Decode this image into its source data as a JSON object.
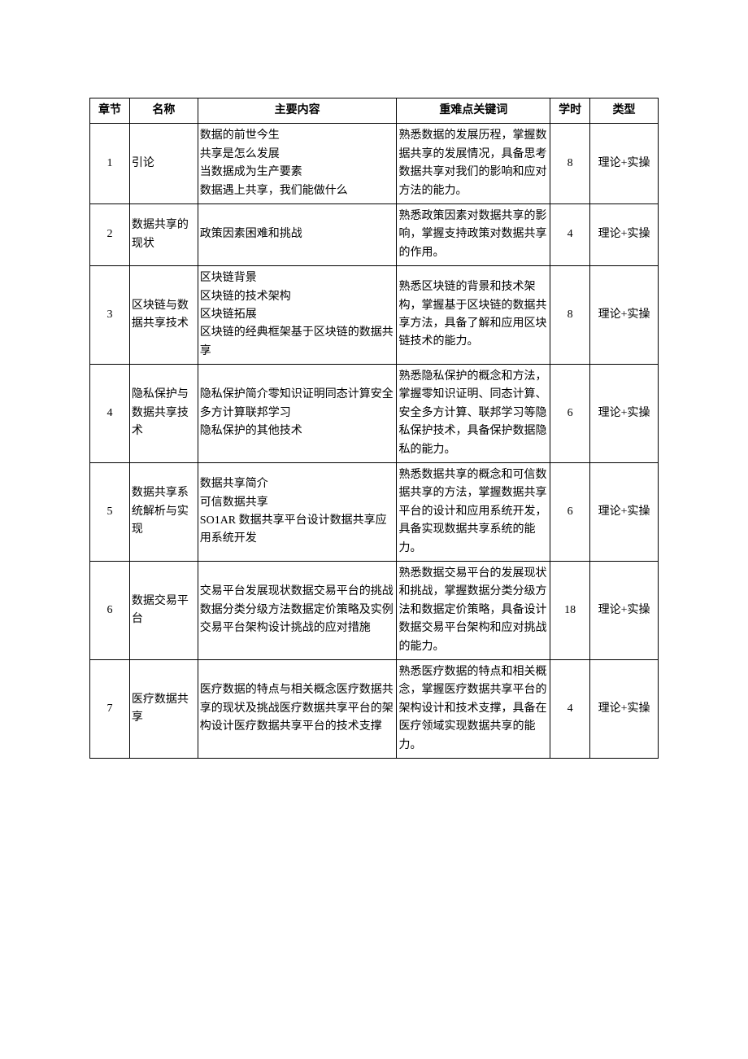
{
  "columns": [
    "章节",
    "名称",
    "主要内容",
    "重难点关键词",
    "学时",
    "类型"
  ],
  "rows": [
    {
      "chapter": "1",
      "name": "引论",
      "content": "数据的前世今生\n共享是怎么发展\n当数据成为生产要素\n数据遇上共享，我们能做什么",
      "keyword": "熟悉数据的发展历程，掌握数据共享的发展情况，具备思考数据共享对我们的影响和应对方法的能力。",
      "hours": "8",
      "type": "理论+实操"
    },
    {
      "chapter": "2",
      "name": "数据共享的现状",
      "content": "政策因素困难和挑战",
      "keyword": "熟悉政策因素对数据共享的影响，掌握支持政策对数据共享的作用。",
      "hours": "4",
      "type": "理论+实操"
    },
    {
      "chapter": "3",
      "name": "区块链与数据共享技术",
      "content": "区块链背景\n区块链的技术架构\n区块链拓展\n区块链的经典框架基于区块链的数据共享",
      "keyword": "熟悉区块链的背景和技术架构，掌握基于区块链的数据共享方法，具备了解和应用区块链技术的能力。",
      "hours": "8",
      "type": "理论+实操"
    },
    {
      "chapter": "4",
      "name": "隐私保护与数据共享技术",
      "content": "隐私保护简介零知识证明同态计算安全多方计算联邦学习\n隐私保护的其他技术",
      "keyword": "熟悉隐私保护的概念和方法，掌握零知识证明、同态计算、安全多方计算、联邦学习等隐私保护技术，具备保护数据隐私的能力。",
      "hours": "6",
      "type": "理论+实操"
    },
    {
      "chapter": "5",
      "name": "数据共享系统解析与实现",
      "content": "数据共享简介\n可信数据共享\nSO1AR 数据共享平台设计数据共享应用系统开发",
      "keyword": "熟悉数据共享的概念和可信数据共享的方法，掌握数据共享平台的设计和应用系统开发，具备实现数据共享系统的能力。",
      "hours": "6",
      "type": "理论+实操"
    },
    {
      "chapter": "6",
      "name": "数据交易平台",
      "content": "交易平台发展现状数据交易平台的挑战数据分类分级方法数据定价策略及实例交易平台架构设计挑战的应对措施",
      "keyword": "熟悉数据交易平台的发展现状和挑战，掌握数据分类分级方法和数据定价策略，具备设计数据交易平台架构和应对挑战的能力。",
      "hours": "18",
      "type": "理论+实操"
    },
    {
      "chapter": "7",
      "name": "医疗数据共享",
      "content": "医疗数据的特点与相关概念医疗数据共享的现状及挑战医疗数据共享平台的架构设计医疗数据共享平台的技术支撑",
      "keyword": "熟悉医疗数据的特点和相关概念，掌握医疗数据共享平台的架构设计和技术支撑，具备在医疗领域实现数据共享的能力。",
      "hours": "4",
      "type": "理论+实操"
    }
  ]
}
